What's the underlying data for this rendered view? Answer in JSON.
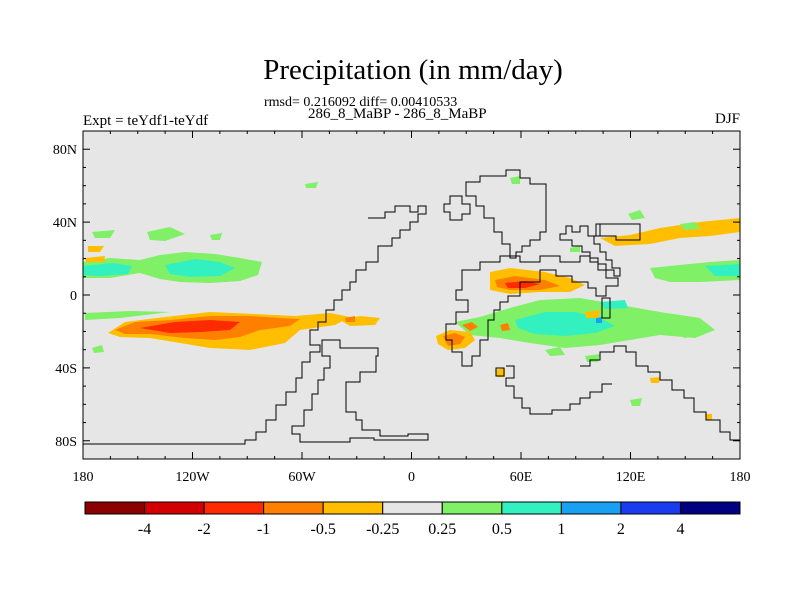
{
  "header": {
    "title": "Precipitation (in mm/day)",
    "stats": "rmsd= 0.216092 diff= 0.00410533",
    "subtitle": "286_8_MaBP - 286_8_MaBP",
    "experiment": "Expt = teYdf1-teYdf",
    "season": "DJF"
  },
  "chart_data": {
    "type": "heatmap",
    "title": "Precipitation (in mm/day)",
    "subtitle": "286_8_MaBP - 286_8_MaBP",
    "xlabel": "",
    "ylabel": "",
    "xlim": [
      -180,
      180
    ],
    "ylim": [
      -90,
      90
    ],
    "x_ticks": [
      {
        "value": -180,
        "label": "180"
      },
      {
        "value": -120,
        "label": "120W"
      },
      {
        "value": -60,
        "label": "60W"
      },
      {
        "value": 0,
        "label": "0"
      },
      {
        "value": 60,
        "label": "60E"
      },
      {
        "value": 120,
        "label": "120E"
      },
      {
        "value": 180,
        "label": "180"
      }
    ],
    "y_ticks": [
      {
        "value": 80,
        "label": "80N"
      },
      {
        "value": 40,
        "label": "40N"
      },
      {
        "value": 0,
        "label": "0"
      },
      {
        "value": -40,
        "label": "40S"
      },
      {
        "value": -80,
        "label": "80S"
      }
    ],
    "background_color": "#e6e6e6",
    "colorbar": {
      "levels": [
        "-4",
        "-2",
        "-1",
        "-0.5",
        "-0.25",
        "0.25",
        "0.5",
        "1",
        "2",
        "4"
      ],
      "colors": [
        "#8b0000",
        "#d40000",
        "#ff2a00",
        "#ff7f00",
        "#ffbf00",
        "#e6e6e6",
        "#80f066",
        "#33f0c0",
        "#1aa0f0",
        "#1a3cf0",
        "#000080"
      ]
    },
    "anomaly_regions": [
      {
        "name": "south-pacific-band-outer",
        "level": "-0.5 to -0.25",
        "color": "#ffbf00",
        "lon_range": [
          -180,
          -40
        ],
        "lat_range": [
          -35,
          -8
        ]
      },
      {
        "name": "south-pacific-band-core",
        "level": "-1 to -0.5",
        "color": "#ff7f00",
        "lon_range": [
          -165,
          -80
        ],
        "lat_range": [
          -28,
          -12
        ]
      },
      {
        "name": "south-pacific-band-peak",
        "level": "-2 to -1",
        "color": "#ff2a00",
        "lon_range": [
          -160,
          -110
        ],
        "lat_range": [
          -22,
          -15
        ]
      },
      {
        "name": "north-pacific-band",
        "level": "0.25 to 0.5",
        "color": "#80f066",
        "lon_range": [
          -180,
          -100
        ],
        "lat_range": [
          8,
          30
        ]
      },
      {
        "name": "north-pacific-band-core",
        "level": "0.5 to 1",
        "color": "#33f0c0",
        "lon_range": [
          -180,
          -110
        ],
        "lat_range": [
          12,
          22
        ]
      },
      {
        "name": "indian-ocean-band",
        "level": "0.25 to 0.5",
        "color": "#80f066",
        "lon_range": [
          10,
          180
        ],
        "lat_range": [
          -30,
          5
        ]
      },
      {
        "name": "indian-ocean-band-core",
        "level": "0.5 to 1",
        "color": "#33f0c0",
        "lon_range": [
          50,
          100
        ],
        "lat_range": [
          -20,
          -10
        ]
      },
      {
        "name": "arabian-sea-patch",
        "level": "-1 to -0.5",
        "color": "#ff7f00",
        "lon_range": [
          48,
          80
        ],
        "lat_range": [
          -2,
          10
        ]
      },
      {
        "name": "southern-africa-patch",
        "level": "-1 to -0.5",
        "color": "#ff7f00",
        "lon_range": [
          15,
          35
        ],
        "lat_range": [
          -30,
          -18
        ]
      },
      {
        "name": "north-pacific-east-band",
        "level": "0.25 to 0.5",
        "color": "#80f066",
        "lon_range": [
          130,
          180
        ],
        "lat_range": [
          10,
          25
        ]
      },
      {
        "name": "east-asia-band",
        "level": "-0.5 to -0.25",
        "color": "#ffbf00",
        "lon_range": [
          100,
          180
        ],
        "lat_range": [
          28,
          45
        ]
      }
    ]
  }
}
